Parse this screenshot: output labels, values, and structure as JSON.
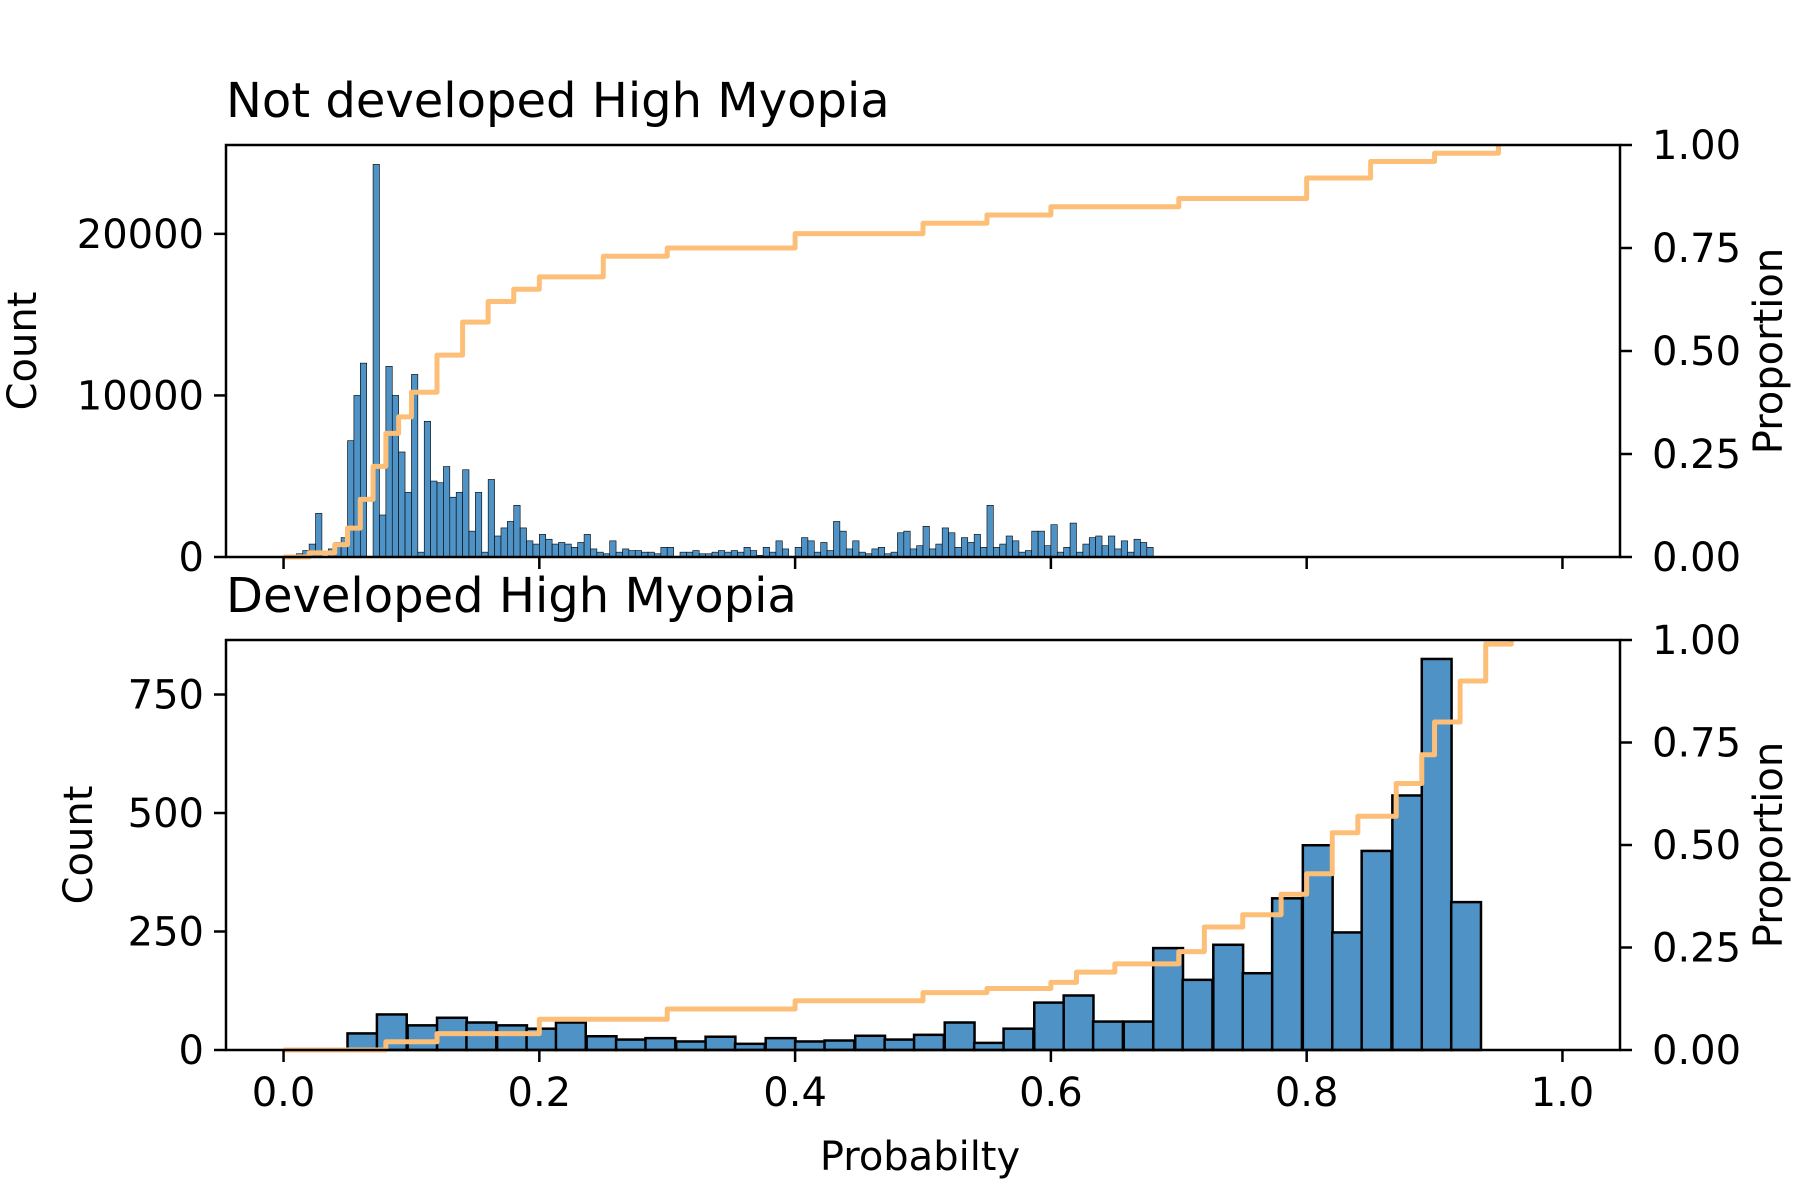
{
  "figure": {
    "xlabel": "Probabilty",
    "x_ticks": [
      "0.0",
      "0.2",
      "0.4",
      "0.6",
      "0.8",
      "1.0"
    ],
    "colors": {
      "bar": "#4f92c6",
      "cdf": "#fdbf78"
    }
  },
  "chart_data": [
    {
      "type": "bar",
      "title": "Not developed High Myopia",
      "xlabel": "",
      "ylabel": "Count",
      "y2label": "Proportion",
      "xlim": [
        -0.045,
        1.045
      ],
      "ylim": [
        0,
        25500
      ],
      "y2lim": [
        0,
        1.0
      ],
      "y_ticks": [
        0,
        10000,
        20000
      ],
      "y2_ticks": [
        "0.00",
        "0.25",
        "0.50",
        "0.75",
        "1.00"
      ],
      "bin_width": 0.005,
      "bins": [
        [
          0.0,
          0
        ],
        [
          0.005,
          50
        ],
        [
          0.01,
          200
        ],
        [
          0.015,
          400
        ],
        [
          0.02,
          800
        ],
        [
          0.025,
          2700
        ],
        [
          0.035,
          500
        ],
        [
          0.04,
          900
        ],
        [
          0.045,
          1200
        ],
        [
          0.05,
          7200
        ],
        [
          0.055,
          10000
        ],
        [
          0.06,
          12000
        ],
        [
          0.07,
          24300
        ],
        [
          0.075,
          2600
        ],
        [
          0.08,
          11800
        ],
        [
          0.085,
          10000
        ],
        [
          0.09,
          6500
        ],
        [
          0.095,
          4000
        ],
        [
          0.1,
          11300
        ],
        [
          0.105,
          300
        ],
        [
          0.11,
          8400
        ],
        [
          0.115,
          4700
        ],
        [
          0.12,
          4600
        ],
        [
          0.125,
          5600
        ],
        [
          0.13,
          3700
        ],
        [
          0.135,
          4000
        ],
        [
          0.14,
          5400
        ],
        [
          0.145,
          1600
        ],
        [
          0.15,
          4000
        ],
        [
          0.155,
          300
        ],
        [
          0.16,
          4800
        ],
        [
          0.165,
          1300
        ],
        [
          0.17,
          1800
        ],
        [
          0.175,
          2200
        ],
        [
          0.18,
          3200
        ],
        [
          0.185,
          1800
        ],
        [
          0.19,
          1000
        ],
        [
          0.195,
          800
        ],
        [
          0.2,
          1400
        ],
        [
          0.205,
          1100
        ],
        [
          0.21,
          800
        ],
        [
          0.215,
          900
        ],
        [
          0.22,
          800
        ],
        [
          0.225,
          600
        ],
        [
          0.23,
          900
        ],
        [
          0.235,
          1400
        ],
        [
          0.24,
          500
        ],
        [
          0.245,
          300
        ],
        [
          0.25,
          200
        ],
        [
          0.255,
          1000
        ],
        [
          0.26,
          300
        ],
        [
          0.265,
          500
        ],
        [
          0.27,
          400
        ],
        [
          0.275,
          400
        ],
        [
          0.28,
          300
        ],
        [
          0.285,
          300
        ],
        [
          0.29,
          200
        ],
        [
          0.295,
          600
        ],
        [
          0.3,
          600
        ],
        [
          0.31,
          300
        ],
        [
          0.315,
          300
        ],
        [
          0.32,
          400
        ],
        [
          0.325,
          200
        ],
        [
          0.33,
          200
        ],
        [
          0.335,
          300
        ],
        [
          0.34,
          400
        ],
        [
          0.345,
          300
        ],
        [
          0.35,
          400
        ],
        [
          0.355,
          300
        ],
        [
          0.36,
          600
        ],
        [
          0.365,
          400
        ],
        [
          0.37,
          100
        ],
        [
          0.375,
          600
        ],
        [
          0.38,
          300
        ],
        [
          0.385,
          1000
        ],
        [
          0.39,
          500
        ],
        [
          0.4,
          600
        ],
        [
          0.405,
          1200
        ],
        [
          0.41,
          1000
        ],
        [
          0.415,
          300
        ],
        [
          0.42,
          900
        ],
        [
          0.425,
          400
        ],
        [
          0.43,
          2200
        ],
        [
          0.435,
          1600
        ],
        [
          0.44,
          500
        ],
        [
          0.445,
          1000
        ],
        [
          0.45,
          300
        ],
        [
          0.455,
          200
        ],
        [
          0.46,
          500
        ],
        [
          0.465,
          600
        ],
        [
          0.47,
          200
        ],
        [
          0.475,
          300
        ],
        [
          0.48,
          1500
        ],
        [
          0.485,
          1600
        ],
        [
          0.49,
          500
        ],
        [
          0.495,
          700
        ],
        [
          0.5,
          1900
        ],
        [
          0.505,
          500
        ],
        [
          0.51,
          800
        ],
        [
          0.515,
          1800
        ],
        [
          0.52,
          1500
        ],
        [
          0.525,
          600
        ],
        [
          0.53,
          1200
        ],
        [
          0.535,
          900
        ],
        [
          0.54,
          1400
        ],
        [
          0.545,
          600
        ],
        [
          0.55,
          3200
        ],
        [
          0.555,
          600
        ],
        [
          0.56,
          800
        ],
        [
          0.565,
          1300
        ],
        [
          0.57,
          1000
        ],
        [
          0.575,
          300
        ],
        [
          0.58,
          400
        ],
        [
          0.585,
          1600
        ],
        [
          0.59,
          1600
        ],
        [
          0.595,
          700
        ],
        [
          0.6,
          2000
        ],
        [
          0.605,
          300
        ],
        [
          0.61,
          600
        ],
        [
          0.615,
          2100
        ],
        [
          0.62,
          300
        ],
        [
          0.625,
          800
        ],
        [
          0.63,
          1200
        ],
        [
          0.635,
          1300
        ],
        [
          0.64,
          700
        ],
        [
          0.645,
          1300
        ],
        [
          0.65,
          500
        ],
        [
          0.655,
          1000
        ],
        [
          0.66,
          300
        ],
        [
          0.665,
          1100
        ],
        [
          0.67,
          900
        ],
        [
          0.675,
          600
        ]
      ],
      "cdf": [
        [
          0.0,
          0.0
        ],
        [
          0.02,
          0.01
        ],
        [
          0.04,
          0.03
        ],
        [
          0.05,
          0.07
        ],
        [
          0.06,
          0.14
        ],
        [
          0.07,
          0.22
        ],
        [
          0.08,
          0.3
        ],
        [
          0.09,
          0.34
        ],
        [
          0.1,
          0.4
        ],
        [
          0.12,
          0.49
        ],
        [
          0.14,
          0.57
        ],
        [
          0.16,
          0.62
        ],
        [
          0.18,
          0.65
        ],
        [
          0.2,
          0.68
        ],
        [
          0.25,
          0.73
        ],
        [
          0.3,
          0.75
        ],
        [
          0.4,
          0.785
        ],
        [
          0.5,
          0.81
        ],
        [
          0.55,
          0.83
        ],
        [
          0.6,
          0.85
        ],
        [
          0.7,
          0.87
        ],
        [
          0.8,
          0.92
        ],
        [
          0.85,
          0.96
        ],
        [
          0.9,
          0.98
        ],
        [
          0.95,
          1.0
        ]
      ]
    },
    {
      "type": "bar",
      "title": "Developed High Myopia",
      "xlabel": "Probabilty",
      "ylabel": "Count",
      "y2label": "Proportion",
      "xlim": [
        -0.045,
        1.045
      ],
      "ylim": [
        0,
        865
      ],
      "y2lim": [
        0,
        1.0
      ],
      "y_ticks": [
        0,
        250,
        500,
        750
      ],
      "y2_ticks": [
        "0.00",
        "0.25",
        "0.50",
        "0.75",
        "1.00"
      ],
      "bin_width": 0.0233,
      "bins": [
        [
          0.05,
          35
        ],
        [
          0.073,
          75
        ],
        [
          0.097,
          52
        ],
        [
          0.12,
          68
        ],
        [
          0.143,
          58
        ],
        [
          0.167,
          52
        ],
        [
          0.19,
          45
        ],
        [
          0.213,
          58
        ],
        [
          0.237,
          29
        ],
        [
          0.26,
          22
        ],
        [
          0.283,
          25
        ],
        [
          0.307,
          18
        ],
        [
          0.33,
          28
        ],
        [
          0.353,
          13
        ],
        [
          0.377,
          25
        ],
        [
          0.4,
          18
        ],
        [
          0.423,
          20
        ],
        [
          0.447,
          30
        ],
        [
          0.47,
          22
        ],
        [
          0.493,
          32
        ],
        [
          0.517,
          58
        ],
        [
          0.54,
          15
        ],
        [
          0.563,
          45
        ],
        [
          0.587,
          100
        ],
        [
          0.61,
          115
        ],
        [
          0.633,
          60
        ],
        [
          0.657,
          60
        ],
        [
          0.68,
          215
        ],
        [
          0.703,
          148
        ],
        [
          0.727,
          222
        ],
        [
          0.75,
          162
        ],
        [
          0.773,
          320
        ],
        [
          0.797,
          432
        ],
        [
          0.82,
          248
        ],
        [
          0.843,
          420
        ],
        [
          0.867,
          537
        ],
        [
          0.89,
          825
        ],
        [
          0.913,
          312
        ]
      ],
      "cdf": [
        [
          0.0,
          0.0
        ],
        [
          0.05,
          0.0
        ],
        [
          0.08,
          0.02
        ],
        [
          0.12,
          0.04
        ],
        [
          0.2,
          0.075
        ],
        [
          0.3,
          0.1
        ],
        [
          0.4,
          0.12
        ],
        [
          0.5,
          0.14
        ],
        [
          0.55,
          0.15
        ],
        [
          0.6,
          0.165
        ],
        [
          0.62,
          0.19
        ],
        [
          0.65,
          0.21
        ],
        [
          0.7,
          0.24
        ],
        [
          0.72,
          0.3
        ],
        [
          0.75,
          0.33
        ],
        [
          0.78,
          0.38
        ],
        [
          0.8,
          0.43
        ],
        [
          0.82,
          0.53
        ],
        [
          0.84,
          0.57
        ],
        [
          0.87,
          0.65
        ],
        [
          0.89,
          0.72
        ],
        [
          0.9,
          0.8
        ],
        [
          0.92,
          0.9
        ],
        [
          0.94,
          0.99
        ],
        [
          0.96,
          1.0
        ]
      ]
    }
  ]
}
